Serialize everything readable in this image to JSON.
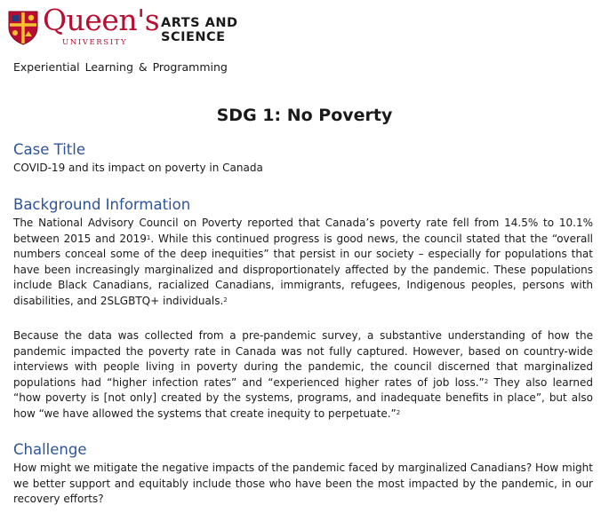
{
  "header": {
    "crest_icon": "queens-crest-icon",
    "logo_name": "Queen's",
    "logo_sub": "UNIVERSITY",
    "faculty_line1": "ARTS AND",
    "faculty_line2": "SCIENCE",
    "brand_color": "#b90e31"
  },
  "department": "Experiential Learning & Programming",
  "title": "SDG 1: No Poverty",
  "heading_color": "#2f5496",
  "case_title": {
    "heading": "Case Title",
    "text": "COVID-19 and its impact on poverty in Canada"
  },
  "background": {
    "heading": "Background Information",
    "p1_a": "The National Advisory Council on Poverty reported that Canada’s poverty rate fell from 14.5% to 10.1% between 2015 and 2019",
    "p1_sup1": "1",
    "p1_b": ". While this continued progress is good news, the council stated that the “overall numbers conceal some of the deep inequities” that persist in our society – especially for populations that have been increasingly marginalized and disproportionately affected by the pandemic. These populations include Black Canadians, racialized Canadians, immigrants, refugees, Indigenous peoples, persons with disabilities, and 2SLGBTQ+ individuals.",
    "p1_sup2": "2",
    "p2_a": "Because the data was collected from a pre-pandemic survey, a substantive understanding of how the pandemic impacted the poverty rate in Canada was not fully captured. However, based on country-wide interviews with people living in poverty during the pandemic, the council discerned that marginalized populations had “higher infection rates” and “experienced higher rates of job loss.”",
    "p2_sup1": "2",
    "p2_b": " They also learned “how poverty is [not only] created by the systems, programs, and inadequate benefits in place”, but also how “we have allowed the systems that create inequity to perpetuate.”",
    "p2_sup2": "2"
  },
  "challenge": {
    "heading": "Challenge",
    "text": "How might we mitigate the negative impacts of the pandemic faced by marginalized Canadians? How might we better support and equitably include those who have been the most impacted by the pandemic, in our recovery efforts?"
  }
}
